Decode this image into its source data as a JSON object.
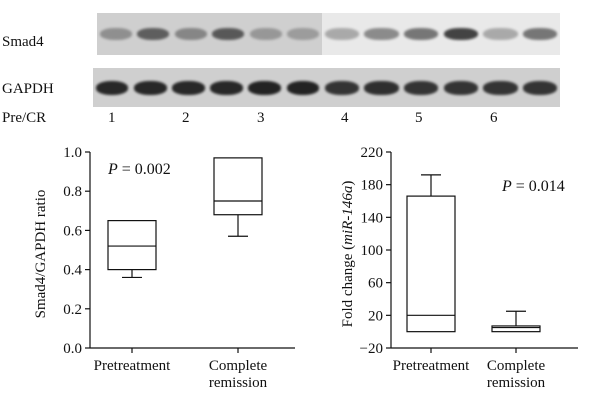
{
  "blot": {
    "rows": [
      {
        "label": "Smad4",
        "intensities_left": [
          0.35,
          0.62,
          0.4,
          0.65,
          0.3,
          0.28
        ],
        "intensities_right": [
          0.3,
          0.45,
          0.55,
          0.8,
          0.3,
          0.55
        ]
      },
      {
        "label": "GAPDH",
        "intensities_left": [
          0.92,
          0.92,
          0.92,
          0.92,
          0.95,
          0.95
        ],
        "intensities_right": [
          0.85,
          0.88,
          0.85,
          0.85,
          0.85,
          0.85
        ]
      }
    ],
    "lane_label": "Pre/CR",
    "pair_numbers": [
      "1",
      "2",
      "3",
      "4",
      "5",
      "6"
    ],
    "colors": {
      "membrane_left": "#cfcfcf",
      "membrane_right": "#e9e9e9",
      "band": "#1a1a1a"
    }
  },
  "chart_data": [
    {
      "type": "box",
      "title": "",
      "ylabel": "Smad4/GAPDH ratio",
      "xlabel": "",
      "ylim": [
        0.0,
        1.0
      ],
      "yticks": [
        "0.0",
        "0.2",
        "0.4",
        "0.6",
        "0.8",
        "1.0"
      ],
      "categories": [
        "Pretreatment",
        "Complete remission"
      ],
      "boxes": [
        {
          "whisker_low": 0.36,
          "q1": 0.4,
          "median": 0.52,
          "q3": 0.65,
          "whisker_high": 0.65
        },
        {
          "whisker_low": 0.57,
          "q1": 0.68,
          "median": 0.75,
          "q3": 0.97,
          "whisker_high": 0.97
        }
      ],
      "annotation": {
        "p_label": "P",
        "p_value": "= 0.002",
        "position": "top-left"
      }
    },
    {
      "type": "box",
      "title": "",
      "ylabel_prefix": "Fold change (",
      "ylabel_gene": "miR-146a",
      "ylabel_suffix": ")",
      "xlabel": "",
      "ylim": [
        -20,
        220
      ],
      "yticks": [
        "−20",
        "20",
        "60",
        "100",
        "140",
        "180",
        "220"
      ],
      "categories": [
        "Pretreatment",
        "Complete remission"
      ],
      "boxes": [
        {
          "whisker_low": 0,
          "q1": 0,
          "median": 20,
          "q3": 166,
          "whisker_high": 192
        },
        {
          "whisker_low": 0,
          "q1": 0,
          "median": 5,
          "q3": 7,
          "whisker_high": 25
        }
      ],
      "annotation": {
        "p_label": "P",
        "p_value": "= 0.014",
        "position": "top-right"
      }
    }
  ]
}
